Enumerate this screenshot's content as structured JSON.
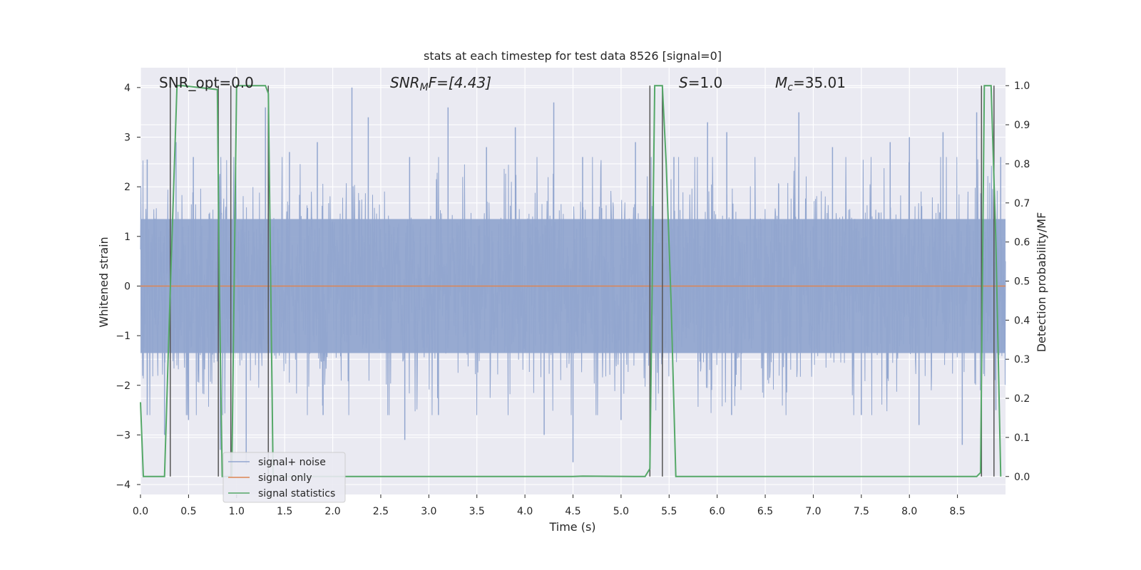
{
  "chart_data": {
    "type": "line",
    "title": "stats at each timestep for test data 8526 [signal=0]",
    "xlabel": "Time (s)",
    "ylabel": "Whitened strain",
    "y2label": "Detection probability/MF",
    "xlim": [
      0,
      9.0
    ],
    "ylim": [
      -4.2,
      4.4
    ],
    "y2lim": [
      -0.046,
      1.046
    ],
    "xticks": [
      "0.0",
      "0.5",
      "1.0",
      "1.5",
      "2.0",
      "2.5",
      "3.0",
      "3.5",
      "4.0",
      "4.5",
      "5.0",
      "5.5",
      "6.0",
      "6.5",
      "7.0",
      "7.5",
      "8.0",
      "8.5"
    ],
    "xtick_values": [
      0,
      0.5,
      1.0,
      1.5,
      2.0,
      2.5,
      3.0,
      3.5,
      4.0,
      4.5,
      5.0,
      5.5,
      6.0,
      6.5,
      7.0,
      7.5,
      8.0,
      8.5
    ],
    "yticks": [
      "4",
      "3",
      "2",
      "1",
      "0",
      "−1",
      "−2",
      "−3",
      "−4"
    ],
    "ytick_values": [
      4,
      3,
      2,
      1,
      0,
      -1,
      -2,
      -3,
      -4
    ],
    "y2ticks": [
      "1.0",
      "0.9",
      "0.8",
      "0.7",
      "0.6",
      "0.5",
      "0.4",
      "0.3",
      "0.2",
      "0.1",
      "0.0"
    ],
    "y2tick_values": [
      1.0,
      0.9,
      0.8,
      0.7,
      0.6,
      0.5,
      0.4,
      0.3,
      0.2,
      0.1,
      0.0
    ],
    "grid": true,
    "legend_position": "bottom-left",
    "annotations": {
      "snr_opt": "SNR_opt=0.0",
      "snr_mf_name": "SNR",
      "snr_mf_sub": "M",
      "snr_mf_rest": "F=[4.43]",
      "s_name": "S",
      "s_rest": "=1.0",
      "mc_name": "M",
      "mc_sub": "c",
      "mc_rest": "=35.01"
    },
    "series": [
      {
        "name": "signal+ noise",
        "color": "#92a6cf",
        "axis": "left",
        "description_values": "dense noise trace, approx. range -3.6 to 4.0",
        "peaks": [
          {
            "x": 0.07,
            "y": 2.55
          },
          {
            "x": 0.37,
            "y": 2.9
          },
          {
            "x": 0.55,
            "y": 2.6
          },
          {
            "x": 0.81,
            "y": 3.0
          },
          {
            "x": 1.3,
            "y": 3.6
          },
          {
            "x": 1.55,
            "y": 2.7
          },
          {
            "x": 1.84,
            "y": 2.9
          },
          {
            "x": 2.2,
            "y": 4.0
          },
          {
            "x": 2.37,
            "y": 3.4
          },
          {
            "x": 2.8,
            "y": 2.6
          },
          {
            "x": 3.2,
            "y": 3.6
          },
          {
            "x": 3.6,
            "y": 2.8
          },
          {
            "x": 3.9,
            "y": 3.2
          },
          {
            "x": 4.3,
            "y": 3.7
          },
          {
            "x": 4.6,
            "y": 2.6
          },
          {
            "x": 5.15,
            "y": 2.9
          },
          {
            "x": 5.55,
            "y": 2.6
          },
          {
            "x": 5.9,
            "y": 3.3
          },
          {
            "x": 6.1,
            "y": 3.1
          },
          {
            "x": 6.85,
            "y": 3.5
          },
          {
            "x": 7.2,
            "y": 2.8
          },
          {
            "x": 7.8,
            "y": 2.9
          },
          {
            "x": 8.0,
            "y": 3.0
          },
          {
            "x": 8.35,
            "y": 3.1
          },
          {
            "x": 8.7,
            "y": 3.5
          },
          {
            "x": 8.95,
            "y": 2.6
          }
        ],
        "troughs": [
          {
            "x": 0.07,
            "y": -2.6
          },
          {
            "x": 0.25,
            "y": -3.0
          },
          {
            "x": 0.5,
            "y": -2.7
          },
          {
            "x": 0.83,
            "y": -3.3
          },
          {
            "x": 1.1,
            "y": -3.6
          },
          {
            "x": 1.9,
            "y": -2.6
          },
          {
            "x": 2.75,
            "y": -3.1
          },
          {
            "x": 3.1,
            "y": -2.6
          },
          {
            "x": 4.2,
            "y": -3.0
          },
          {
            "x": 4.5,
            "y": -3.55
          },
          {
            "x": 5.0,
            "y": -2.7
          },
          {
            "x": 6.15,
            "y": -2.6
          },
          {
            "x": 7.5,
            "y": -2.6
          },
          {
            "x": 8.1,
            "y": -2.8
          },
          {
            "x": 8.55,
            "y": -3.2
          },
          {
            "x": 8.9,
            "y": -2.5
          }
        ]
      },
      {
        "name": "signal only",
        "color": "#dd8452",
        "axis": "left",
        "x": [
          0,
          9.0
        ],
        "y": [
          0,
          0
        ]
      },
      {
        "name": "signal statistics",
        "color": "#55a868",
        "axis": "right",
        "x": [
          0.0,
          0.03,
          0.25,
          0.3,
          0.38,
          0.44,
          0.8,
          0.82,
          0.85,
          0.95,
          1.0,
          1.3,
          1.33,
          1.38,
          4.5,
          4.6,
          5.25,
          5.3,
          5.35,
          5.43,
          5.47,
          5.52,
          5.57,
          8.7,
          8.74,
          8.78,
          8.85,
          8.9,
          8.95
        ],
        "y": [
          0.19,
          0.0,
          0.0,
          0.4,
          1.0,
          1.0,
          0.99,
          0.5,
          0.0,
          0.0,
          1.0,
          1.0,
          0.98,
          0.0,
          0.0,
          0.001,
          0.0,
          0.02,
          1.0,
          1.0,
          0.8,
          0.45,
          0.0,
          0.0,
          0.01,
          1.0,
          1.0,
          0.6,
          0.0
        ]
      }
    ],
    "vertical_markers": {
      "color": "#555555",
      "x": [
        0.31,
        0.81,
        0.94,
        1.33,
        5.3,
        5.43,
        8.75,
        8.88
      ]
    }
  }
}
